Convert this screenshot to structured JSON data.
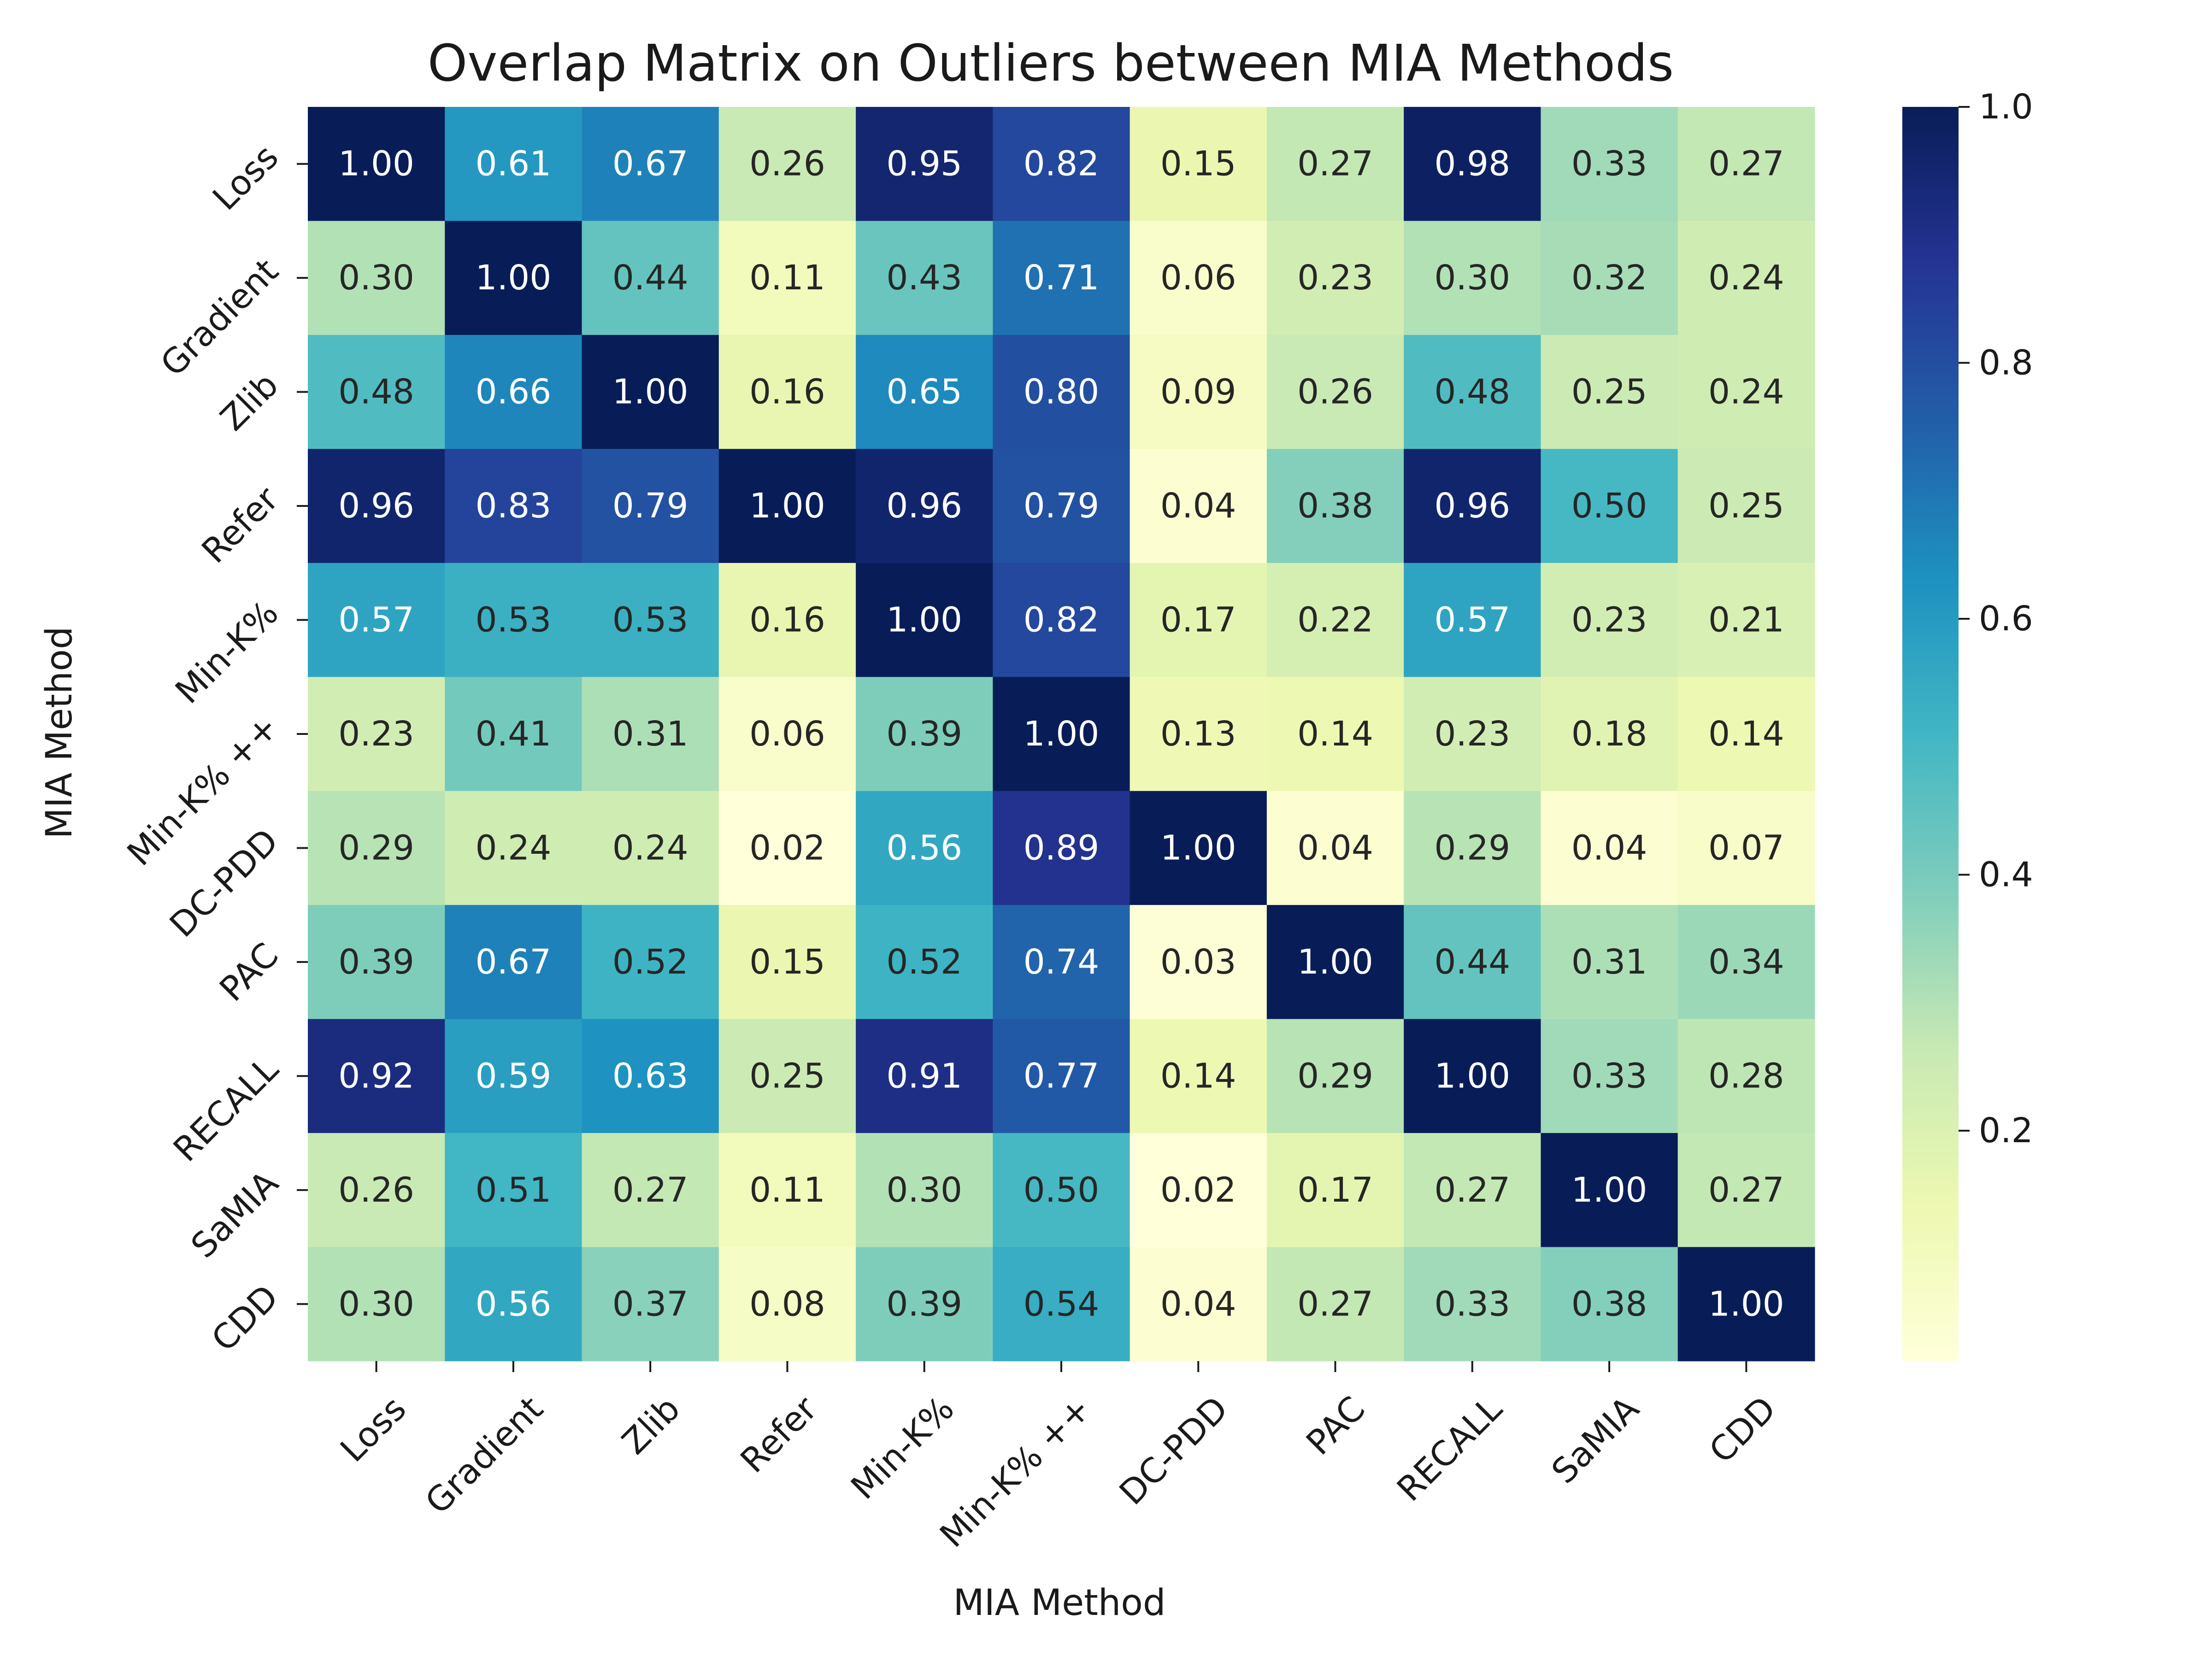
{
  "chart_data": {
    "type": "heatmap",
    "title": "Overlap Matrix on Outliers between MIA Methods",
    "xlabel": "MIA Method",
    "ylabel": "MIA Method",
    "x_categories": [
      "Loss",
      "Gradient",
      "Zlib",
      "Refer",
      "Min-K%",
      "Min-K% ++",
      "DC-PDD",
      "PAC",
      "RECALL",
      "SaMIA",
      "CDD"
    ],
    "y_categories": [
      "Loss",
      "Gradient",
      "Zlib",
      "Refer",
      "Min-K%",
      "Min-K% ++",
      "DC-PDD",
      "PAC",
      "RECALL",
      "SaMIA",
      "CDD"
    ],
    "values": [
      [
        1.0,
        0.61,
        0.67,
        0.26,
        0.95,
        0.82,
        0.15,
        0.27,
        0.98,
        0.33,
        0.27
      ],
      [
        0.3,
        1.0,
        0.44,
        0.11,
        0.43,
        0.71,
        0.06,
        0.23,
        0.3,
        0.32,
        0.24
      ],
      [
        0.48,
        0.66,
        1.0,
        0.16,
        0.65,
        0.8,
        0.09,
        0.26,
        0.48,
        0.25,
        0.24
      ],
      [
        0.96,
        0.83,
        0.79,
        1.0,
        0.96,
        0.79,
        0.04,
        0.38,
        0.96,
        0.5,
        0.25
      ],
      [
        0.57,
        0.53,
        0.53,
        0.16,
        1.0,
        0.82,
        0.17,
        0.22,
        0.57,
        0.23,
        0.21
      ],
      [
        0.23,
        0.41,
        0.31,
        0.06,
        0.39,
        1.0,
        0.13,
        0.14,
        0.23,
        0.18,
        0.14
      ],
      [
        0.29,
        0.24,
        0.24,
        0.02,
        0.56,
        0.89,
        1.0,
        0.04,
        0.29,
        0.04,
        0.07
      ],
      [
        0.39,
        0.67,
        0.52,
        0.15,
        0.52,
        0.74,
        0.03,
        1.0,
        0.44,
        0.31,
        0.34
      ],
      [
        0.92,
        0.59,
        0.63,
        0.25,
        0.91,
        0.77,
        0.14,
        0.29,
        1.0,
        0.33,
        0.28
      ],
      [
        0.26,
        0.51,
        0.27,
        0.11,
        0.3,
        0.5,
        0.02,
        0.17,
        0.27,
        1.0,
        0.27
      ],
      [
        0.3,
        0.56,
        0.37,
        0.08,
        0.39,
        0.54,
        0.04,
        0.27,
        0.33,
        0.38,
        1.0
      ]
    ],
    "colormap": "YlGnBu",
    "vmin": 0.02,
    "vmax": 1.0,
    "colorbar_ticks": [
      0.2,
      0.4,
      0.6,
      0.8,
      1.0
    ],
    "colorbar_tick_labels": [
      "0.2",
      "0.4",
      "0.6",
      "0.8",
      "1.0"
    ],
    "value_format": "2-decimal"
  }
}
